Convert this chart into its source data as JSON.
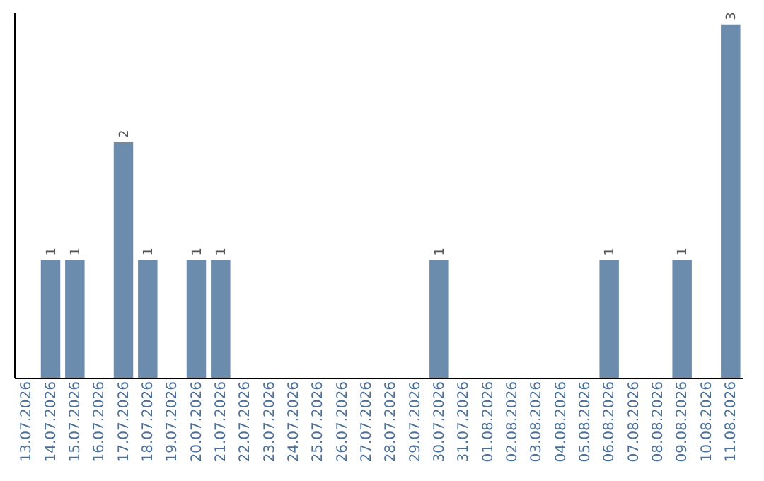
{
  "chart_data": {
    "type": "bar",
    "categories": [
      "13.07.2026",
      "14.07.2026",
      "15.07.2026",
      "16.07.2026",
      "17.07.2026",
      "18.07.2026",
      "19.07.2026",
      "20.07.2026",
      "21.07.2026",
      "22.07.2026",
      "23.07.2026",
      "24.07.2026",
      "25.07.2026",
      "26.07.2026",
      "27.07.2026",
      "28.07.2026",
      "29.07.2026",
      "30.07.2026",
      "31.07.2026",
      "01.08.2026",
      "02.08.2026",
      "03.08.2026",
      "04.08.2026",
      "05.08.2026",
      "06.08.2026",
      "07.08.2026",
      "08.08.2026",
      "09.08.2026",
      "10.08.2026",
      "11.08.2026"
    ],
    "values": [
      0,
      1,
      1,
      0,
      2,
      1,
      0,
      1,
      1,
      0,
      0,
      0,
      0,
      0,
      0,
      0,
      0,
      1,
      0,
      0,
      0,
      0,
      0,
      0,
      1,
      0,
      0,
      1,
      0,
      3
    ],
    "value_labels": [
      null,
      "1",
      "1",
      null,
      "2",
      "1",
      null,
      "1",
      "1",
      null,
      null,
      null,
      null,
      null,
      null,
      null,
      null,
      "1",
      null,
      null,
      null,
      null,
      null,
      null,
      "1",
      null,
      null,
      "1",
      null,
      "3"
    ],
    "color": "#6b8cad",
    "ylim": [
      0,
      3.1
    ],
    "tick_labels": "x",
    "grid": false
  }
}
